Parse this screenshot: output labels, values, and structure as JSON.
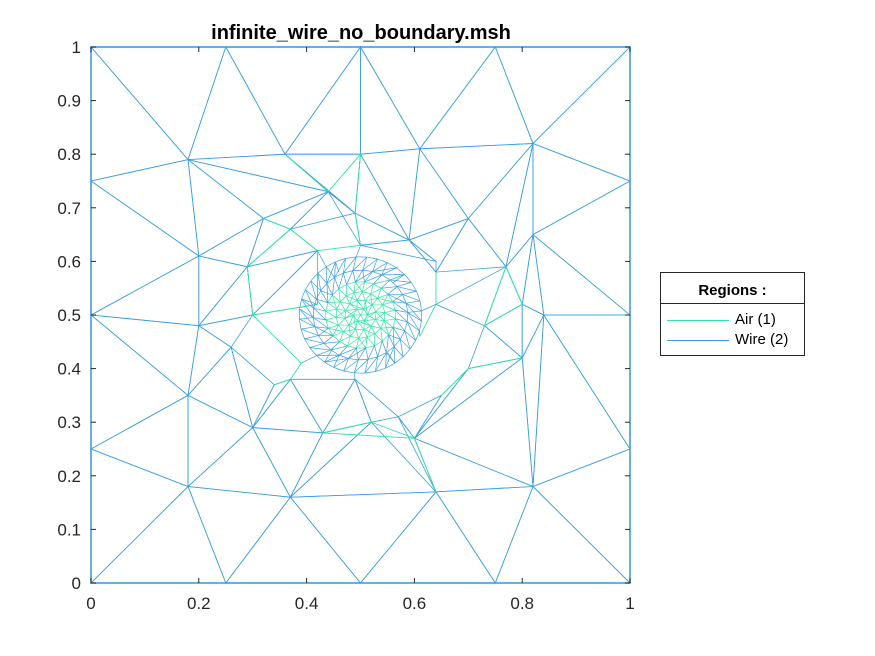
{
  "chart_data": {
    "type": "mesh",
    "title": "infinite_wire_no_boundary.msh",
    "xlabel": "",
    "ylabel": "",
    "xlim": [
      0,
      1
    ],
    "ylim": [
      0,
      1
    ],
    "xticks": [
      0,
      0.2,
      0.4,
      0.6,
      0.8,
      1
    ],
    "xtick_labels": [
      "0",
      "0.2",
      "0.4",
      "0.6",
      "0.8",
      "1"
    ],
    "yticks": [
      0,
      0.1,
      0.2,
      0.3,
      0.4,
      0.5,
      0.6,
      0.7,
      0.8,
      0.9,
      1
    ],
    "ytick_labels": [
      "0",
      "0.1",
      "0.2",
      "0.3",
      "0.4",
      "0.5",
      "0.6",
      "0.7",
      "0.8",
      "0.9",
      "1"
    ],
    "grid": false,
    "legend": {
      "title": "Regions :",
      "placement": "right",
      "entries": [
        {
          "label": "Air (1)",
          "color": "#2ee6a0"
        },
        {
          "label": "Wire (2)",
          "color": "#3b9fe0"
        }
      ]
    },
    "colors": {
      "air": "#2ee6a0",
      "wire": "#3b9fe0",
      "axis": "#262626"
    },
    "nodes": [
      [
        0,
        0
      ],
      [
        0.25,
        0
      ],
      [
        0.5,
        0
      ],
      [
        0.75,
        0
      ],
      [
        1,
        0
      ],
      [
        1,
        0.25
      ],
      [
        1,
        0.5
      ],
      [
        1,
        0.75
      ],
      [
        1,
        1
      ],
      [
        0.75,
        1
      ],
      [
        0.5,
        1
      ],
      [
        0.25,
        1
      ],
      [
        0,
        1
      ],
      [
        0,
        0.75
      ],
      [
        0,
        0.5
      ],
      [
        0,
        0.25
      ],
      [
        0.18,
        0.79
      ],
      [
        0.36,
        0.8
      ],
      [
        0.5,
        0.8
      ],
      [
        0.61,
        0.81
      ],
      [
        0.82,
        0.82
      ],
      [
        0.18,
        0.18
      ],
      [
        0.37,
        0.16
      ],
      [
        0.64,
        0.17
      ],
      [
        0.82,
        0.18
      ],
      [
        0.18,
        0.35
      ],
      [
        0.82,
        0.65
      ],
      [
        0.84,
        0.5
      ],
      [
        0.8,
        0.52
      ],
      [
        0.2,
        0.61
      ],
      [
        0.32,
        0.68
      ],
      [
        0.29,
        0.59
      ],
      [
        0.37,
        0.66
      ],
      [
        0.44,
        0.73
      ],
      [
        0.49,
        0.69
      ],
      [
        0.42,
        0.62
      ],
      [
        0.5,
        0.63
      ],
      [
        0.59,
        0.64
      ],
      [
        0.7,
        0.68
      ],
      [
        0.64,
        0.58
      ],
      [
        0.77,
        0.59
      ],
      [
        0.73,
        0.48
      ],
      [
        0.8,
        0.42
      ],
      [
        0.2,
        0.48
      ],
      [
        0.26,
        0.44
      ],
      [
        0.3,
        0.5
      ],
      [
        0.39,
        0.41
      ],
      [
        0.42,
        0.52
      ],
      [
        0.3,
        0.29
      ],
      [
        0.37,
        0.38
      ],
      [
        0.43,
        0.28
      ],
      [
        0.49,
        0.38
      ],
      [
        0.57,
        0.31
      ],
      [
        0.6,
        0.27
      ],
      [
        0.65,
        0.35
      ],
      [
        0.7,
        0.4
      ],
      [
        0.64,
        0.6
      ],
      [
        0.57,
        0.59
      ],
      [
        0.52,
        0.3
      ],
      [
        0.45,
        0.44
      ],
      [
        0.55,
        0.43
      ],
      [
        0.61,
        0.46
      ],
      [
        0.34,
        0.37
      ],
      [
        0.46,
        0.58
      ],
      [
        0.56,
        0.56
      ],
      [
        0.64,
        0.52
      ]
    ],
    "wire_triangles": [
      [
        0,
        1,
        21
      ],
      [
        1,
        2,
        22
      ],
      [
        2,
        3,
        23
      ],
      [
        3,
        4,
        24
      ],
      [
        4,
        5,
        24
      ],
      [
        5,
        6,
        27
      ],
      [
        6,
        7,
        26
      ],
      [
        7,
        8,
        20
      ],
      [
        8,
        9,
        20
      ],
      [
        9,
        10,
        19
      ],
      [
        10,
        11,
        17
      ],
      [
        11,
        12,
        16
      ],
      [
        12,
        13,
        16
      ],
      [
        13,
        14,
        29
      ],
      [
        14,
        15,
        25
      ],
      [
        15,
        0,
        21
      ],
      [
        1,
        21,
        22
      ],
      [
        2,
        22,
        23
      ],
      [
        3,
        23,
        24
      ],
      [
        5,
        24,
        27
      ],
      [
        6,
        26,
        27
      ],
      [
        7,
        20,
        26
      ],
      [
        9,
        19,
        20
      ],
      [
        10,
        17,
        18
      ],
      [
        10,
        18,
        19
      ],
      [
        11,
        16,
        17
      ],
      [
        13,
        16,
        29
      ],
      [
        14,
        29,
        43
      ],
      [
        14,
        25,
        43
      ],
      [
        15,
        21,
        25
      ],
      [
        21,
        22,
        48
      ],
      [
        21,
        25,
        48
      ],
      [
        22,
        48,
        50
      ],
      [
        22,
        50,
        58
      ],
      [
        22,
        23,
        58
      ],
      [
        23,
        52,
        53
      ],
      [
        23,
        24,
        53
      ],
      [
        24,
        42,
        53
      ],
      [
        24,
        27,
        42
      ],
      [
        27,
        28,
        42
      ],
      [
        26,
        27,
        28
      ],
      [
        26,
        28,
        40
      ],
      [
        20,
        26,
        40
      ],
      [
        20,
        38,
        40
      ],
      [
        19,
        20,
        38
      ],
      [
        19,
        37,
        38
      ],
      [
        18,
        19,
        37
      ],
      [
        18,
        34,
        37
      ],
      [
        17,
        18,
        34
      ],
      [
        17,
        33,
        34
      ],
      [
        16,
        17,
        33
      ],
      [
        16,
        30,
        33
      ],
      [
        16,
        29,
        30
      ],
      [
        29,
        30,
        31
      ],
      [
        29,
        31,
        43
      ],
      [
        31,
        43,
        45
      ],
      [
        43,
        44,
        45
      ],
      [
        25,
        43,
        44
      ],
      [
        25,
        44,
        48
      ],
      [
        44,
        48,
        62
      ],
      [
        48,
        49,
        62
      ],
      [
        48,
        49,
        50
      ],
      [
        50,
        51,
        58
      ],
      [
        50,
        49,
        51
      ],
      [
        51,
        52,
        58
      ],
      [
        52,
        53,
        54
      ],
      [
        53,
        54,
        55
      ],
      [
        53,
        42,
        55
      ],
      [
        42,
        41,
        55
      ],
      [
        28,
        41,
        42
      ],
      [
        28,
        40,
        41
      ],
      [
        40,
        41,
        65
      ],
      [
        38,
        39,
        40
      ],
      [
        37,
        38,
        39
      ],
      [
        37,
        39,
        56
      ],
      [
        36,
        37,
        56
      ],
      [
        34,
        36,
        37
      ],
      [
        33,
        34,
        36
      ],
      [
        32,
        33,
        34
      ],
      [
        30,
        32,
        33
      ],
      [
        30,
        31,
        32
      ],
      [
        31,
        32,
        35
      ],
      [
        31,
        35,
        45
      ],
      [
        45,
        47,
        35
      ]
    ],
    "air_edges": [
      [
        17,
        33
      ],
      [
        33,
        18
      ],
      [
        18,
        34
      ],
      [
        30,
        32
      ],
      [
        32,
        31
      ],
      [
        31,
        45
      ],
      [
        45,
        46
      ],
      [
        46,
        49
      ],
      [
        49,
        62
      ],
      [
        32,
        35
      ],
      [
        35,
        47
      ],
      [
        47,
        45
      ],
      [
        50,
        53
      ],
      [
        53,
        23
      ],
      [
        58,
        53
      ],
      [
        58,
        50
      ],
      [
        41,
        28
      ],
      [
        28,
        40
      ],
      [
        40,
        41
      ],
      [
        34,
        36
      ],
      [
        36,
        35
      ],
      [
        54,
        55
      ],
      [
        55,
        42
      ],
      [
        61,
        65
      ],
      [
        65,
        39
      ]
    ],
    "wire_center": [
      0.5,
      0.5
    ],
    "wire_radius": 0.065
  }
}
